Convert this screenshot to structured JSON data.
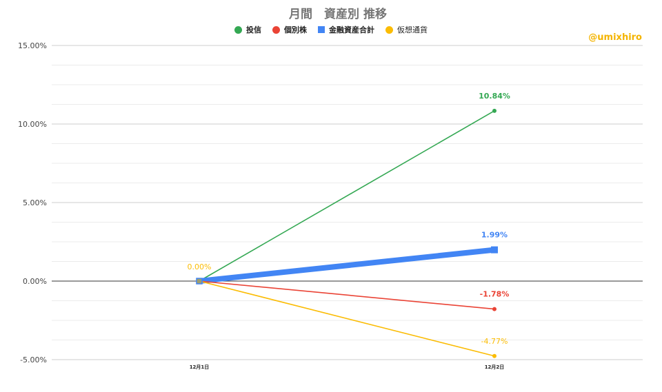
{
  "title": "月間　資産別 推移",
  "watermark": "@umixhiro",
  "colors": {
    "toushin": "#34a853",
    "kobetsu": "#ea4335",
    "kinyu": "#4285f4",
    "kaso": "#fbbc04"
  },
  "legend": [
    {
      "label": "投信",
      "marker": "circle",
      "color": "#34a853"
    },
    {
      "label": "個別株",
      "marker": "circle",
      "color": "#ea4335"
    },
    {
      "label": "金融資産合計",
      "marker": "square",
      "color": "#4285f4"
    },
    {
      "label": "仮想通貨",
      "marker": "circle",
      "color": "#fbbc04"
    }
  ],
  "chart_data": {
    "type": "line",
    "title": "月間　資産別 推移",
    "categories": [
      "12月1日",
      "12月2日"
    ],
    "ylim": [
      -5,
      15
    ],
    "y_major_ticks": [
      "15.00%",
      "10.00%",
      "5.00%",
      "0.00%",
      "-5.00%"
    ],
    "grid": true,
    "legend_position": "top",
    "series": [
      {
        "name": "投信",
        "values": [
          0,
          10.84
        ],
        "color": "#34a853",
        "labels": [
          "",
          "10.84%"
        ]
      },
      {
        "name": "金融資産合計",
        "values": [
          0,
          1.99
        ],
        "color": "#4285f4",
        "labels": [
          "",
          "1.99%"
        ],
        "thick": true
      },
      {
        "name": "個別株",
        "values": [
          0,
          -1.78
        ],
        "color": "#ea4335",
        "labels": [
          "",
          "-1.78%"
        ]
      },
      {
        "name": "仮想通貨",
        "values": [
          0,
          -4.77
        ],
        "color": "#fbbc04",
        "labels": [
          "0.00%",
          "-4.77%"
        ]
      }
    ]
  }
}
